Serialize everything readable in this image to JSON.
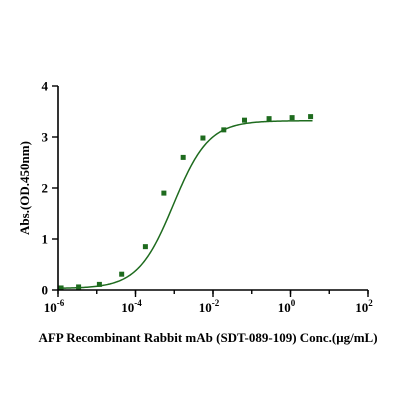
{
  "chart_data": {
    "type": "scatter",
    "xlabel": "AFP Recombinant Rabbit mAb (SDT-089-109) Conc.(μg/mL)",
    "ylabel": "Abs.(OD.450nm)",
    "x_scale": "log",
    "xlim": [
      1e-06,
      100
    ],
    "ylim": [
      0,
      4
    ],
    "x_ticks": [
      {
        "value": 1e-06,
        "base": "10",
        "exp": "-6"
      },
      {
        "value": 0.0001,
        "base": "10",
        "exp": "-4"
      },
      {
        "value": 0.01,
        "base": "10",
        "exp": "-2"
      },
      {
        "value": 1,
        "base": "10",
        "exp": "0"
      },
      {
        "value": 100,
        "base": "10",
        "exp": "2"
      }
    ],
    "y_ticks": [
      "0",
      "1",
      "2",
      "3",
      "4"
    ],
    "grid": false,
    "legend": "none",
    "color": "#1e6b1e",
    "series": [
      {
        "x": [
          1.2e-06,
          3.4e-06,
          1.17e-05,
          4.4e-05,
          0.00018,
          0.00054,
          0.0017,
          0.0055,
          0.019,
          0.065,
          0.28,
          1.1,
          3.3
        ],
        "y": [
          0.04,
          0.06,
          0.11,
          0.31,
          0.85,
          1.9,
          2.6,
          2.98,
          3.14,
          3.33,
          3.36,
          3.38,
          3.4
        ]
      }
    ],
    "fit_curve": {
      "type": "4PL",
      "bottom": 0.03,
      "top": 3.32,
      "ec50": 0.00095,
      "hill": 0.95
    }
  }
}
